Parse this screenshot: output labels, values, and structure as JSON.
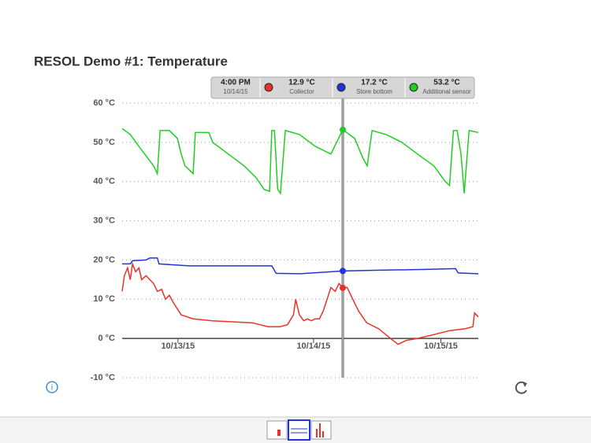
{
  "chart_data": {
    "type": "line",
    "title": "RESOL Demo #1: Temperature",
    "xlim": [
      0,
      65.7
    ],
    "xticks": [
      {
        "value": 10.3,
        "label": "10/13/15"
      },
      {
        "value": 35.3,
        "label": "10/14/15"
      },
      {
        "value": 58.8,
        "label": "10/15/15"
      }
    ],
    "ylim": [
      -10,
      60
    ],
    "yticks": [
      {
        "value": -10,
        "label": "-10 °C"
      },
      {
        "value": 0,
        "label": "0 °C"
      },
      {
        "value": 10,
        "label": "10 °C"
      },
      {
        "value": 20,
        "label": "20 °C"
      },
      {
        "value": 30,
        "label": "30 °C"
      },
      {
        "value": 40,
        "label": "40 °C"
      },
      {
        "value": 50,
        "label": "50 °C"
      },
      {
        "value": 60,
        "label": "60 °C"
      }
    ],
    "grid": true,
    "series": [
      {
        "name": "Collector",
        "color": "#e8322a",
        "x": [
          0,
          0.4,
          1.0,
          1.5,
          1.9,
          2.5,
          3.1,
          3.6,
          4.4,
          5.1,
          5.8,
          6.5,
          7.3,
          8.0,
          8.7,
          9.5,
          10.9,
          13.1,
          16.7,
          21.1,
          24.0,
          26.9,
          29.1,
          30.5,
          31.6,
          32.0,
          32.7,
          33.5,
          34.2,
          34.9,
          35.6,
          36.4,
          37.1,
          37.8,
          38.5,
          39.3,
          40.0,
          40.7,
          41.5,
          42.2,
          43.6,
          45.1,
          47.3,
          49.5,
          50.9,
          52.4,
          54.5,
          57.5,
          60.4,
          63.3,
          64.7,
          65.0,
          65.7
        ],
        "values": [
          12,
          16,
          18,
          15,
          19,
          17,
          18,
          15,
          16,
          15,
          14,
          12,
          12.5,
          10,
          11,
          9,
          6,
          5,
          4.5,
          4.2,
          4,
          3,
          3,
          3.5,
          6,
          10,
          6,
          4.5,
          5,
          4.5,
          5,
          5,
          7,
          10,
          13,
          12,
          14,
          12.9,
          13,
          11,
          7,
          4,
          2.5,
          0,
          -1.5,
          -0.5,
          0,
          1,
          2,
          2.5,
          3,
          6.5,
          5.5
        ]
      },
      {
        "name": "Store bottom",
        "color": "#2233dd",
        "x": [
          0,
          1.5,
          1.9,
          4.4,
          5.1,
          6.5,
          6.8,
          12.4,
          21.1,
          27.6,
          28.4,
          32.7,
          38.5,
          40.7,
          47.3,
          56.0,
          61.5,
          62.0,
          65.7
        ],
        "values": [
          19,
          19,
          19.8,
          20,
          20.5,
          20.5,
          19,
          18.5,
          18.5,
          18.5,
          16.6,
          16.5,
          17,
          17.2,
          17.4,
          17.6,
          17.8,
          16.7,
          16.5
        ]
      },
      {
        "name": "Additional sensor",
        "color": "#22cc22",
        "x": [
          0,
          1.5,
          3.6,
          5.8,
          6.5,
          7.0,
          8.7,
          10.2,
          10.9,
          11.6,
          13.1,
          13.5,
          16.0,
          16.7,
          19.6,
          22.5,
          24.7,
          26.2,
          27.2,
          27.6,
          28.1,
          28.7,
          29.2,
          30.1,
          32.7,
          35.6,
          38.5,
          40.7,
          42.9,
          44.4,
          45.2,
          46.1,
          48.7,
          51.6,
          54.5,
          57.5,
          59.6,
          60.4,
          61.1,
          61.8,
          62.5,
          63.1,
          64.0,
          65.7
        ],
        "values": [
          53.5,
          52,
          48,
          44,
          42,
          53,
          53,
          51,
          47,
          44,
          42,
          52.5,
          52.5,
          50,
          47,
          44,
          41,
          38,
          37.5,
          53,
          53,
          38,
          37,
          53,
          52,
          49,
          47,
          53.2,
          51,
          46,
          44,
          53,
          52,
          50,
          47,
          44,
          40,
          39,
          53,
          53,
          47,
          37,
          53,
          52.5
        ]
      }
    ],
    "cursor": {
      "x": 40.7,
      "time": "4:00 PM",
      "date": "10/14/15",
      "values": [
        12.9,
        17.2,
        53.2
      ],
      "value_labels": [
        "12.9 °C",
        "17.2 °C",
        "53.2 °C"
      ]
    }
  }
}
